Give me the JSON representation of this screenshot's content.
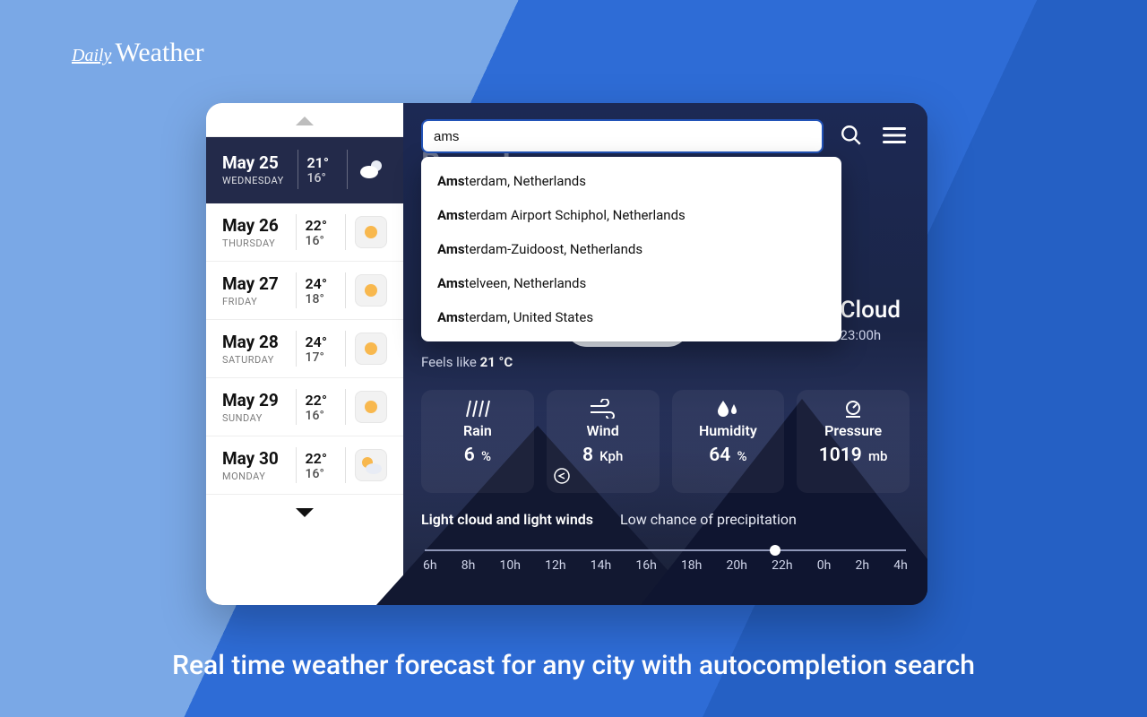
{
  "logo": {
    "prefix": "Daily",
    "main": "Weather"
  },
  "tagline": "Real time weather forecast for any city with autocompletion search",
  "search": {
    "value": "ams",
    "suggestions": [
      {
        "match": "Ams",
        "rest": "terdam, Netherlands"
      },
      {
        "match": "Ams",
        "rest": "terdam Airport Schiphol, Netherlands"
      },
      {
        "match": "Ams",
        "rest": "terdam-Zuidoost, Netherlands"
      },
      {
        "match": "Ams",
        "rest": "telveen, Netherlands"
      },
      {
        "match": "Ams",
        "rest": "terdam, United States"
      }
    ]
  },
  "bg_city": "Barcelona",
  "selected": {
    "date": "May 25",
    "dow": "WEDNESDAY",
    "hi": "21°",
    "lo": "16°",
    "icon": "cloud-moon"
  },
  "days": [
    {
      "date": "May 26",
      "dow": "THURSDAY",
      "hi": "22°",
      "lo": "16°",
      "icon": "sun"
    },
    {
      "date": "May 27",
      "dow": "FRIDAY",
      "hi": "24°",
      "lo": "18°",
      "icon": "sun"
    },
    {
      "date": "May 28",
      "dow": "SATURDAY",
      "hi": "24°",
      "lo": "17°",
      "icon": "sun"
    },
    {
      "date": "May 29",
      "dow": "SUNDAY",
      "hi": "22°",
      "lo": "16°",
      "icon": "sun"
    },
    {
      "date": "May 30",
      "dow": "MONDAY",
      "hi": "22°",
      "lo": "16°",
      "icon": "partly"
    }
  ],
  "feels": {
    "label": "Feels like ",
    "value": "21 °C"
  },
  "condition": {
    "label": "Cloud",
    "time": "23:00h"
  },
  "metrics": {
    "rain": {
      "label": "Rain",
      "value": "6",
      "unit": "%"
    },
    "wind": {
      "label": "Wind",
      "value": "8",
      "unit": "Kph"
    },
    "humidity": {
      "label": "Humidity",
      "value": "64",
      "unit": "%"
    },
    "pressure": {
      "label": "Pressure",
      "value": "1019",
      "unit": "mb"
    }
  },
  "summary": {
    "main": "Light cloud and light winds",
    "sub": "Low chance of precipitation"
  },
  "timeline": {
    "hours": [
      "6h",
      "8h",
      "10h",
      "12h",
      "14h",
      "16h",
      "18h",
      "20h",
      "22h",
      "0h",
      "2h",
      "4h"
    ],
    "dot_index": 8
  },
  "colors": {
    "accent": "#2e6cd6",
    "panel_dark": "#1a2140",
    "selected_bg": "#232a4a"
  }
}
